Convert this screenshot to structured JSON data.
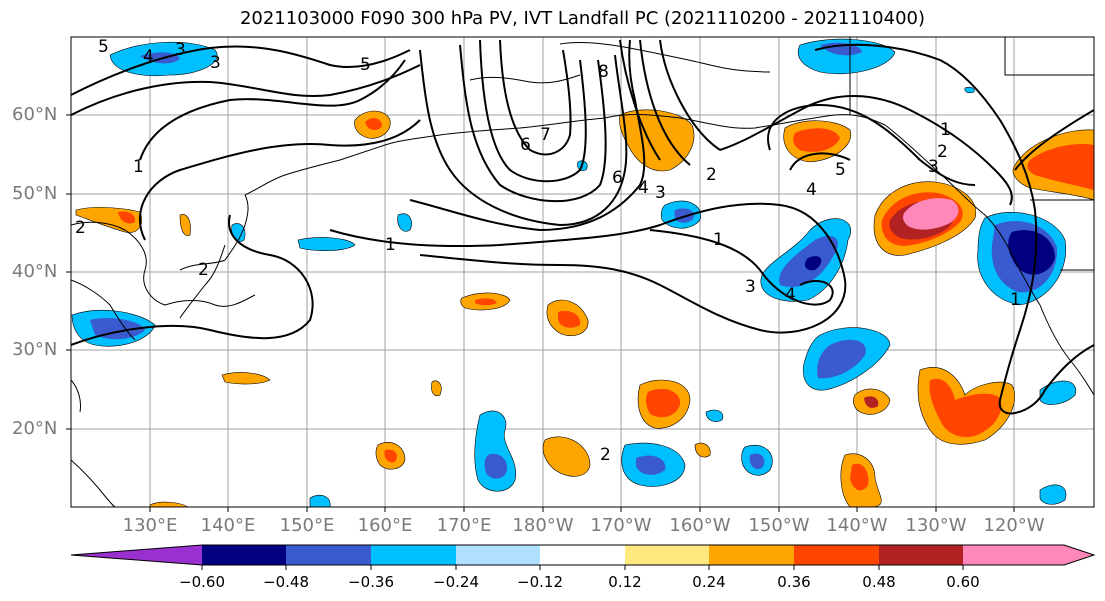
{
  "title": "2021103000 F090 300 hPa PV, IVT Landfall PC (2021110200 - 2021110400)",
  "lat_labels": [
    "60°N",
    "50°N",
    "40°N",
    "30°N",
    "20°N"
  ],
  "lon_labels": [
    "130°E",
    "140°E",
    "150°E",
    "160°E",
    "170°E",
    "180°W",
    "170°W",
    "160°W",
    "150°W",
    "140°W",
    "130°W",
    "120°W"
  ],
  "colorbar": {
    "ticks": [
      "−0.60",
      "−0.48",
      "−0.36",
      "−0.24",
      "−0.12",
      "0.12",
      "0.24",
      "0.36",
      "0.48",
      "0.60"
    ],
    "colors": [
      "#9b30d0",
      "#000080",
      "#3a5bd0",
      "#00bfff",
      "#b0e0ff",
      "#ffffff",
      "#ffe880",
      "#ffa500",
      "#ff4500",
      "#b22222",
      "#ff88bb"
    ]
  },
  "contour_labels": [
    "5",
    "4",
    "3",
    "1",
    "5",
    "6",
    "7",
    "8",
    "1",
    "6",
    "4",
    "3",
    "2",
    "1",
    "2",
    "3",
    "4",
    "5",
    "1",
    "2",
    "4",
    "3",
    "2",
    "3",
    "2",
    "1"
  ]
}
